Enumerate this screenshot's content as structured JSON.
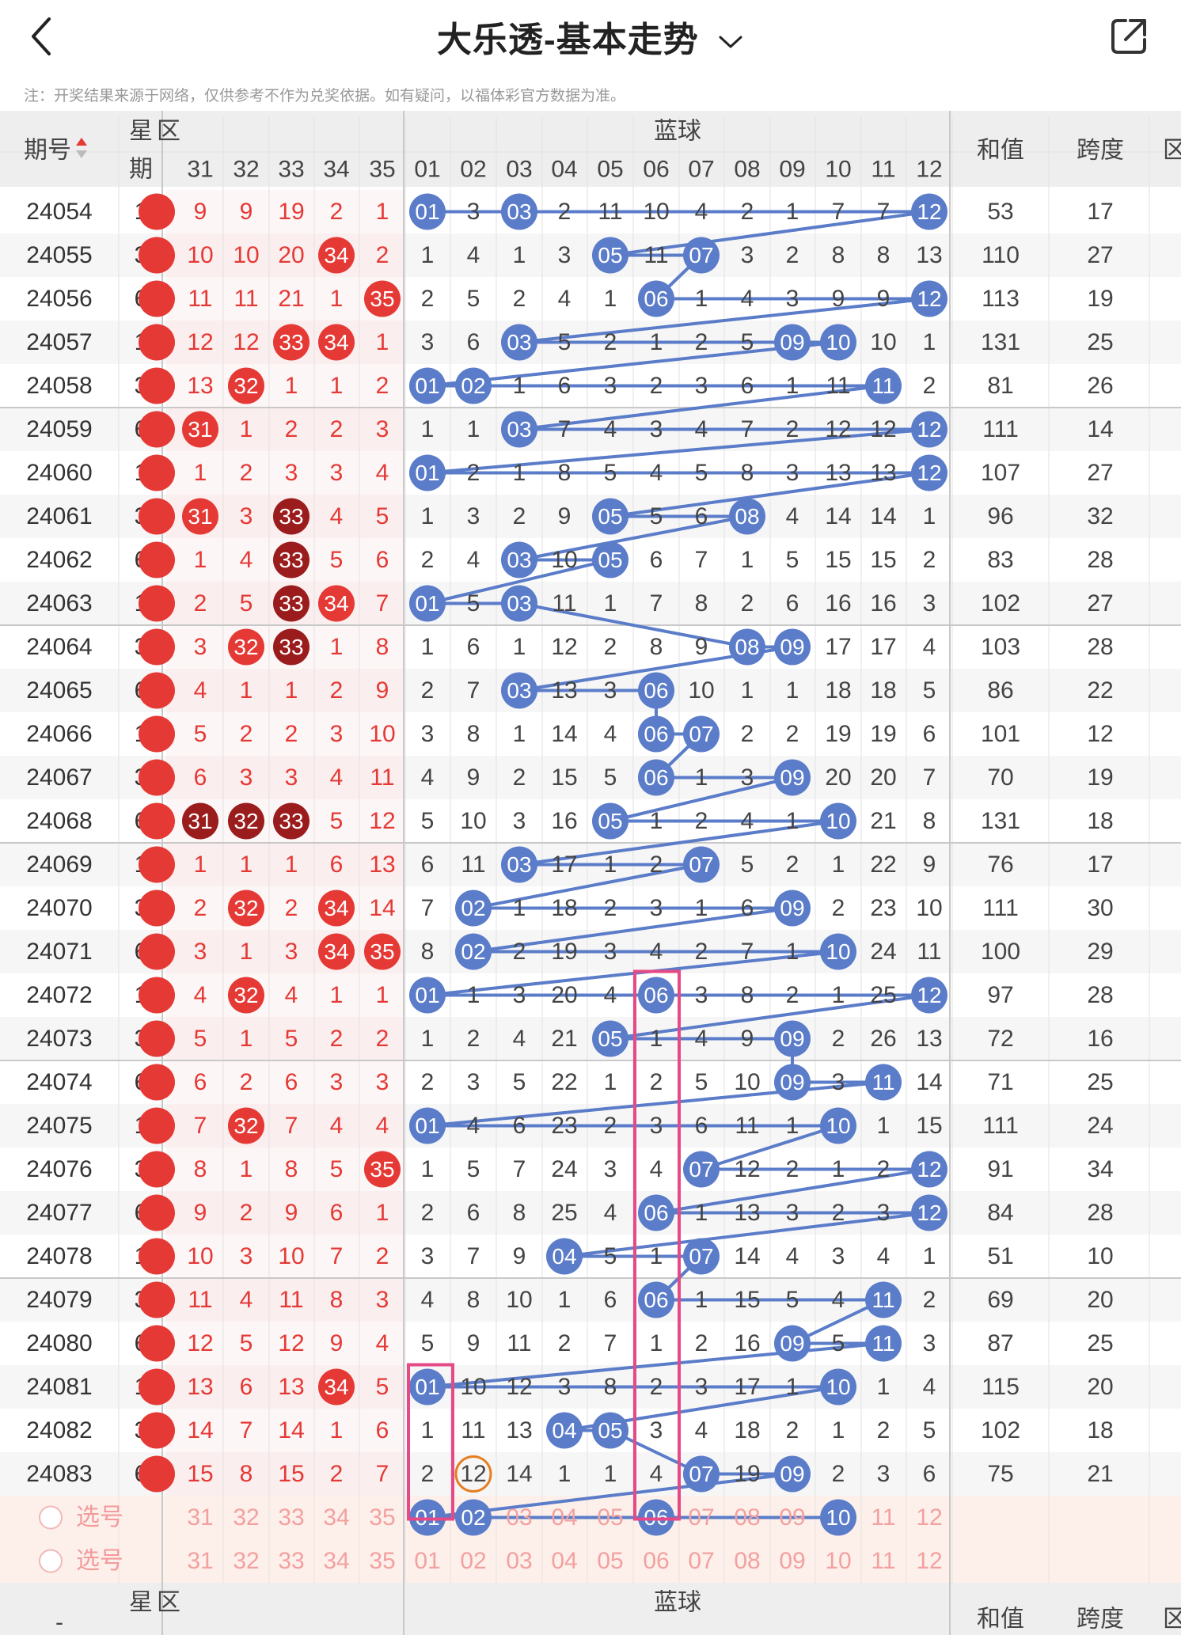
{
  "header": {
    "title": "大乐透-基本走势",
    "note": "注：开奖结果来源于网络，仅供参考不作为兑奖依据。如有疑问，以福体彩官方数据为准。",
    "back_icon": "chevron-left-icon",
    "share_icon": "share-icon",
    "dropdown_icon": "chevron-down-icon"
  },
  "table_header": {
    "issue": "期号",
    "star": "星",
    "period": "期",
    "front_partial": "区",
    "blue": "蓝球",
    "sum": "和值",
    "span": "跨度",
    "region_partial": "区",
    "front_cols": [
      "31",
      "32",
      "33",
      "34",
      "35"
    ],
    "blue_cols": [
      "01",
      "02",
      "03",
      "04",
      "05",
      "06",
      "07",
      "08",
      "09",
      "10",
      "11",
      "12"
    ]
  },
  "colors": {
    "red": "#e53935",
    "darkred": "#9b1c1c",
    "blue_ball": "#5b7cc9",
    "line_blue": "#5b7cc9",
    "line_pink": "#e54a86",
    "box_pink": "#e54a86",
    "orange": "#e67e22"
  },
  "rows": [
    {
      "issue": "24054",
      "period": "1",
      "front": [
        "9",
        "9",
        "19",
        "2",
        "1"
      ],
      "blue": [
        "01",
        "3",
        "03",
        "2",
        "11",
        "10",
        "4",
        "2",
        "1",
        "7",
        "7",
        "12"
      ],
      "sum": "53",
      "span": "17"
    },
    {
      "issue": "24055",
      "period": "3",
      "front": [
        "10",
        "10",
        "20",
        "34",
        "2"
      ],
      "blue": [
        "1",
        "4",
        "1",
        "3",
        "05",
        "11",
        "07",
        "3",
        "2",
        "8",
        "8",
        "13"
      ],
      "sum": "110",
      "span": "27"
    },
    {
      "issue": "24056",
      "period": "6",
      "front": [
        "11",
        "11",
        "21",
        "1",
        "35"
      ],
      "blue": [
        "2",
        "5",
        "2",
        "4",
        "1",
        "06",
        "1",
        "4",
        "3",
        "9",
        "9",
        "12"
      ],
      "sum": "113",
      "span": "19"
    },
    {
      "issue": "24057",
      "period": "1",
      "front": [
        "12",
        "12",
        "33",
        "34",
        "1"
      ],
      "blue": [
        "3",
        "6",
        "03",
        "5",
        "2",
        "1",
        "2",
        "5",
        "09",
        "10",
        "10",
        "1"
      ],
      "sum": "131",
      "span": "25"
    },
    {
      "issue": "24058",
      "period": "3",
      "front": [
        "13",
        "32",
        "1",
        "1",
        "2"
      ],
      "blue": [
        "01",
        "02",
        "1",
        "6",
        "3",
        "2",
        "3",
        "6",
        "1",
        "11",
        "11",
        "2"
      ],
      "sum": "81",
      "span": "26"
    },
    {
      "issue": "24059",
      "period": "6",
      "front": [
        "31",
        "1",
        "2",
        "2",
        "3"
      ],
      "blue": [
        "1",
        "1",
        "03",
        "7",
        "4",
        "3",
        "4",
        "7",
        "2",
        "12",
        "12",
        "12"
      ],
      "sum": "111",
      "span": "14"
    },
    {
      "issue": "24060",
      "period": "1",
      "front": [
        "1",
        "2",
        "3",
        "3",
        "4"
      ],
      "blue": [
        "01",
        "2",
        "1",
        "8",
        "5",
        "4",
        "5",
        "8",
        "3",
        "13",
        "13",
        "12"
      ],
      "sum": "107",
      "span": "27"
    },
    {
      "issue": "24061",
      "period": "3",
      "front": [
        "31",
        "3",
        "33",
        "4",
        "5"
      ],
      "blue": [
        "1",
        "3",
        "2",
        "9",
        "05",
        "5",
        "6",
        "08",
        "4",
        "14",
        "14",
        "1"
      ],
      "sum": "96",
      "span": "32"
    },
    {
      "issue": "24062",
      "period": "6",
      "front": [
        "1",
        "4",
        "33",
        "5",
        "6"
      ],
      "blue": [
        "2",
        "4",
        "03",
        "10",
        "05",
        "6",
        "7",
        "1",
        "5",
        "15",
        "15",
        "2"
      ],
      "sum": "83",
      "span": "28"
    },
    {
      "issue": "24063",
      "period": "1",
      "front": [
        "2",
        "5",
        "33",
        "34",
        "7"
      ],
      "blue": [
        "01",
        "5",
        "03",
        "11",
        "1",
        "7",
        "8",
        "2",
        "6",
        "16",
        "16",
        "3"
      ],
      "sum": "102",
      "span": "27"
    },
    {
      "issue": "24064",
      "period": "3",
      "front": [
        "3",
        "32",
        "33",
        "1",
        "8"
      ],
      "blue": [
        "1",
        "6",
        "1",
        "12",
        "2",
        "8",
        "9",
        "08",
        "09",
        "17",
        "17",
        "4"
      ],
      "sum": "103",
      "span": "28"
    },
    {
      "issue": "24065",
      "period": "6",
      "front": [
        "4",
        "1",
        "1",
        "2",
        "9"
      ],
      "blue": [
        "2",
        "7",
        "03",
        "13",
        "3",
        "06",
        "10",
        "1",
        "1",
        "18",
        "18",
        "5"
      ],
      "sum": "86",
      "span": "22"
    },
    {
      "issue": "24066",
      "period": "1",
      "front": [
        "5",
        "2",
        "2",
        "3",
        "10"
      ],
      "blue": [
        "3",
        "8",
        "1",
        "14",
        "4",
        "06",
        "07",
        "2",
        "2",
        "19",
        "19",
        "6"
      ],
      "sum": "101",
      "span": "12"
    },
    {
      "issue": "24067",
      "period": "3",
      "front": [
        "6",
        "3",
        "3",
        "4",
        "11"
      ],
      "blue": [
        "4",
        "9",
        "2",
        "15",
        "5",
        "06",
        "1",
        "3",
        "09",
        "20",
        "20",
        "7"
      ],
      "sum": "70",
      "span": "19"
    },
    {
      "issue": "24068",
      "period": "6",
      "front": [
        "31",
        "32",
        "33",
        "5",
        "12"
      ],
      "blue": [
        "5",
        "10",
        "3",
        "16",
        "05",
        "1",
        "2",
        "4",
        "1",
        "10",
        "21",
        "8"
      ],
      "sum": "131",
      "span": "18"
    },
    {
      "issue": "24069",
      "period": "1",
      "front": [
        "1",
        "1",
        "1",
        "6",
        "13"
      ],
      "blue": [
        "6",
        "11",
        "03",
        "17",
        "1",
        "2",
        "07",
        "5",
        "2",
        "1",
        "22",
        "9"
      ],
      "sum": "76",
      "span": "17"
    },
    {
      "issue": "24070",
      "period": "3",
      "front": [
        "2",
        "32",
        "2",
        "34",
        "14"
      ],
      "blue": [
        "7",
        "02",
        "1",
        "18",
        "2",
        "3",
        "1",
        "6",
        "09",
        "2",
        "23",
        "10"
      ],
      "sum": "111",
      "span": "30"
    },
    {
      "issue": "24071",
      "period": "6",
      "front": [
        "3",
        "1",
        "3",
        "34",
        "35"
      ],
      "blue": [
        "8",
        "02",
        "2",
        "19",
        "3",
        "4",
        "2",
        "7",
        "1",
        "10",
        "24",
        "11"
      ],
      "sum": "100",
      "span": "29"
    },
    {
      "issue": "24072",
      "period": "1",
      "front": [
        "4",
        "32",
        "4",
        "1",
        "1"
      ],
      "blue": [
        "01",
        "1",
        "3",
        "20",
        "4",
        "06",
        "3",
        "8",
        "2",
        "1",
        "25",
        "12"
      ],
      "sum": "97",
      "span": "28"
    },
    {
      "issue": "24073",
      "period": "3",
      "front": [
        "5",
        "1",
        "5",
        "2",
        "2"
      ],
      "blue": [
        "1",
        "2",
        "4",
        "21",
        "05",
        "1",
        "4",
        "9",
        "09",
        "2",
        "26",
        "13"
      ],
      "sum": "72",
      "span": "16"
    },
    {
      "issue": "24074",
      "period": "6",
      "front": [
        "6",
        "2",
        "6",
        "3",
        "3"
      ],
      "blue": [
        "2",
        "3",
        "5",
        "22",
        "1",
        "2",
        "5",
        "10",
        "09",
        "3",
        "11",
        "14"
      ],
      "sum": "71",
      "span": "25"
    },
    {
      "issue": "24075",
      "period": "1",
      "front": [
        "7",
        "32",
        "7",
        "4",
        "4"
      ],
      "blue": [
        "01",
        "4",
        "6",
        "23",
        "2",
        "3",
        "6",
        "11",
        "1",
        "10",
        "1",
        "15"
      ],
      "sum": "111",
      "span": "24"
    },
    {
      "issue": "24076",
      "period": "3",
      "front": [
        "8",
        "1",
        "8",
        "5",
        "35"
      ],
      "blue": [
        "1",
        "5",
        "7",
        "24",
        "3",
        "4",
        "07",
        "12",
        "2",
        "1",
        "2",
        "12"
      ],
      "sum": "91",
      "span": "34"
    },
    {
      "issue": "24077",
      "period": "6",
      "front": [
        "9",
        "2",
        "9",
        "6",
        "1"
      ],
      "blue": [
        "2",
        "6",
        "8",
        "25",
        "4",
        "06",
        "1",
        "13",
        "3",
        "2",
        "3",
        "12"
      ],
      "sum": "84",
      "span": "28"
    },
    {
      "issue": "24078",
      "period": "1",
      "front": [
        "10",
        "3",
        "10",
        "7",
        "2"
      ],
      "blue": [
        "3",
        "7",
        "9",
        "04",
        "5",
        "1",
        "07",
        "14",
        "4",
        "3",
        "4",
        "1"
      ],
      "sum": "51",
      "span": "10"
    },
    {
      "issue": "24079",
      "period": "3",
      "front": [
        "11",
        "4",
        "11",
        "8",
        "3"
      ],
      "blue": [
        "4",
        "8",
        "10",
        "1",
        "6",
        "06",
        "1",
        "15",
        "5",
        "4",
        "11",
        "2"
      ],
      "sum": "69",
      "span": "20"
    },
    {
      "issue": "24080",
      "period": "6",
      "front": [
        "12",
        "5",
        "12",
        "9",
        "4"
      ],
      "blue": [
        "5",
        "9",
        "11",
        "2",
        "7",
        "1",
        "2",
        "16",
        "09",
        "5",
        "11",
        "3"
      ],
      "sum": "87",
      "span": "25"
    },
    {
      "issue": "24081",
      "period": "1",
      "front": [
        "13",
        "6",
        "13",
        "34",
        "5"
      ],
      "blue": [
        "01",
        "10",
        "12",
        "3",
        "8",
        "2",
        "3",
        "17",
        "1",
        "10",
        "1",
        "4"
      ],
      "sum": "115",
      "span": "20"
    },
    {
      "issue": "24082",
      "period": "3",
      "front": [
        "14",
        "7",
        "14",
        "1",
        "6"
      ],
      "blue": [
        "1",
        "11",
        "13",
        "04",
        "05",
        "3",
        "4",
        "18",
        "2",
        "1",
        "2",
        "5"
      ],
      "sum": "102",
      "span": "18"
    },
    {
      "issue": "24083",
      "period": "6",
      "front": [
        "15",
        "8",
        "15",
        "2",
        "7"
      ],
      "blue": [
        "2",
        "12",
        "14",
        "1",
        "1",
        "4",
        "07",
        "19",
        "09",
        "2",
        "3",
        "6"
      ],
      "sum": "75",
      "span": "21"
    }
  ],
  "select_label": "选号",
  "select_rows": [
    {
      "blue_selected": [
        "01",
        "02",
        "06",
        "10"
      ]
    },
    {
      "blue_selected": []
    }
  ]
}
